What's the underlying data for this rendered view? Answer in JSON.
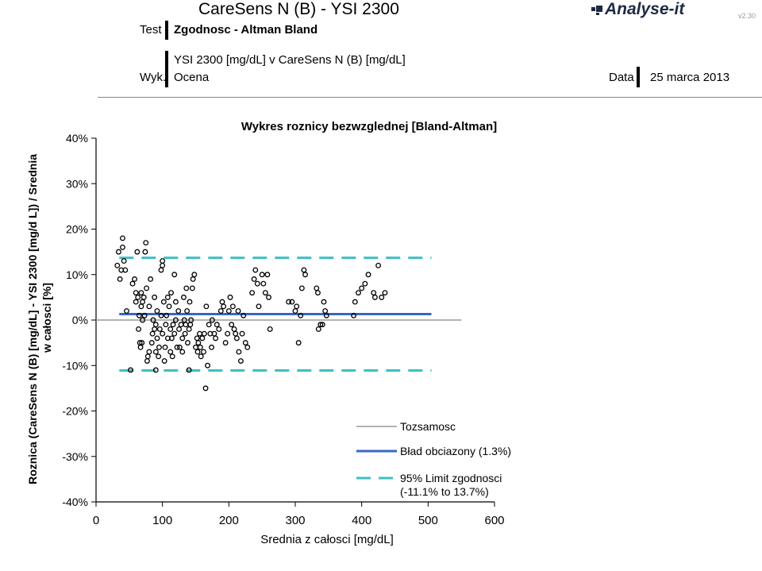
{
  "header": {
    "title": "CareSens N (B)  -  YSI 2300",
    "test_label": "Test",
    "test_value": "Zgodnosc - Altman Bland",
    "subtitle": "YSI 2300 [mg/dL]  v  CareSens N (B) [mg/dL]",
    "wyk_label": "Wyk.",
    "wyk_value": "Ocena",
    "date_label": "Data",
    "date_value": "25 marca 2013",
    "logo": "Analyse-it",
    "version": "v2.30"
  },
  "colors": {
    "bias": "#3a65c8",
    "limits": "#3fbfc0",
    "identity": "#999999",
    "points": "#000000"
  },
  "chart_data": {
    "type": "scatter",
    "title": "Wykres roznicy bezwzglednej [Bland-Altman]",
    "xlabel": "Srednia z całosci [mg/dL]",
    "ylabel": "Roznica  (CareSens N  (B) [mg/dL] - YSI 2300 [mg/d L]) / Srednia w całosci [%]",
    "x_ticks": [
      0,
      100,
      200,
      300,
      400,
      500,
      600
    ],
    "x_tick_labels": [
      "0",
      "100",
      "200",
      "300",
      "400",
      "500",
      "600"
    ],
    "y_ticks": [
      40,
      30,
      20,
      10,
      0,
      -10,
      -20,
      -30,
      -40
    ],
    "y_tick_labels": [
      "40%",
      "30%",
      "20%",
      "10%",
      "0%",
      "-10%",
      "-20%",
      "-30%",
      "-40%"
    ],
    "xlim": [
      0,
      600
    ],
    "ylim": [
      -40,
      40
    ],
    "identity_line": {
      "y": 0,
      "x_range": [
        0,
        550
      ]
    },
    "bias": {
      "y": 1.3,
      "x_range": [
        35,
        505
      ]
    },
    "limits": {
      "lower": -11.1,
      "upper": 13.7,
      "x_range": [
        35,
        505
      ]
    },
    "legend": [
      {
        "label": "Tozsamosc",
        "style": "identity"
      },
      {
        "label": "Bład obciazony (1.3%)",
        "style": "bias"
      },
      {
        "label": "95% Limit zgodnosci",
        "label2": "(-11.1% to 13.7%)",
        "style": "limits"
      }
    ],
    "legend_position": "bottom-right",
    "points": [
      [
        32,
        12
      ],
      [
        34,
        15
      ],
      [
        36,
        9
      ],
      [
        38,
        11
      ],
      [
        40,
        18
      ],
      [
        40,
        16
      ],
      [
        42,
        13
      ],
      [
        44,
        11
      ],
      [
        46,
        2
      ],
      [
        52,
        -11
      ],
      [
        55,
        8
      ],
      [
        58,
        9
      ],
      [
        60,
        6
      ],
      [
        60,
        4
      ],
      [
        62,
        15
      ],
      [
        63,
        5
      ],
      [
        64,
        -2
      ],
      [
        65,
        1
      ],
      [
        66,
        -5
      ],
      [
        67,
        -6
      ],
      [
        68,
        6
      ],
      [
        68,
        3
      ],
      [
        69,
        -5
      ],
      [
        70,
        0
      ],
      [
        70,
        4
      ],
      [
        72,
        5
      ],
      [
        73,
        1
      ],
      [
        74,
        15
      ],
      [
        75,
        17
      ],
      [
        76,
        7
      ],
      [
        77,
        -9
      ],
      [
        78,
        -8
      ],
      [
        80,
        3
      ],
      [
        80,
        -7
      ],
      [
        82,
        9
      ],
      [
        84,
        -5
      ],
      [
        85,
        -3
      ],
      [
        86,
        0
      ],
      [
        88,
        -2
      ],
      [
        88,
        5
      ],
      [
        90,
        -11
      ],
      [
        90,
        -7
      ],
      [
        90,
        -1
      ],
      [
        92,
        2
      ],
      [
        92,
        -4
      ],
      [
        94,
        -8
      ],
      [
        95,
        -6
      ],
      [
        96,
        -2
      ],
      [
        98,
        1
      ],
      [
        98,
        11
      ],
      [
        100,
        12
      ],
      [
        100,
        13
      ],
      [
        100,
        -3
      ],
      [
        102,
        4
      ],
      [
        103,
        -9
      ],
      [
        104,
        -6
      ],
      [
        105,
        -1
      ],
      [
        106,
        1
      ],
      [
        108,
        5
      ],
      [
        108,
        -4
      ],
      [
        110,
        3
      ],
      [
        112,
        -7
      ],
      [
        112,
        -2
      ],
      [
        113,
        6
      ],
      [
        114,
        -4
      ],
      [
        115,
        -8
      ],
      [
        116,
        -1
      ],
      [
        118,
        10
      ],
      [
        118,
        -3
      ],
      [
        120,
        0
      ],
      [
        120,
        4
      ],
      [
        122,
        -6
      ],
      [
        124,
        2
      ],
      [
        125,
        -2
      ],
      [
        126,
        -6
      ],
      [
        128,
        -1
      ],
      [
        130,
        -7
      ],
      [
        130,
        -4
      ],
      [
        132,
        5
      ],
      [
        133,
        0
      ],
      [
        134,
        -3
      ],
      [
        135,
        -1
      ],
      [
        136,
        7
      ],
      [
        137,
        2
      ],
      [
        138,
        -5
      ],
      [
        140,
        -2
      ],
      [
        140,
        -11
      ],
      [
        141,
        4
      ],
      [
        142,
        -1
      ],
      [
        143,
        0
      ],
      [
        145,
        7
      ],
      [
        146,
        9
      ],
      [
        148,
        10
      ],
      [
        150,
        -6
      ],
      [
        152,
        -4
      ],
      [
        153,
        -7
      ],
      [
        154,
        -5
      ],
      [
        156,
        -3
      ],
      [
        157,
        -6
      ],
      [
        158,
        -8
      ],
      [
        160,
        -4
      ],
      [
        162,
        -7
      ],
      [
        163,
        -3
      ],
      [
        165,
        -15
      ],
      [
        166,
        3
      ],
      [
        168,
        -10
      ],
      [
        170,
        -1
      ],
      [
        172,
        -3
      ],
      [
        174,
        -6
      ],
      [
        175,
        0
      ],
      [
        178,
        -3
      ],
      [
        180,
        -4
      ],
      [
        182,
        -1
      ],
      [
        185,
        -2
      ],
      [
        188,
        2
      ],
      [
        190,
        4
      ],
      [
        192,
        3
      ],
      [
        195,
        -5
      ],
      [
        198,
        -3
      ],
      [
        200,
        2
      ],
      [
        202,
        5
      ],
      [
        204,
        -1
      ],
      [
        206,
        3
      ],
      [
        208,
        -2
      ],
      [
        210,
        -3
      ],
      [
        212,
        -4
      ],
      [
        214,
        2
      ],
      [
        215,
        -7
      ],
      [
        218,
        -9
      ],
      [
        220,
        -3
      ],
      [
        222,
        1
      ],
      [
        225,
        -5
      ],
      [
        228,
        -6
      ],
      [
        235,
        6
      ],
      [
        238,
        9
      ],
      [
        240,
        11
      ],
      [
        243,
        8
      ],
      [
        245,
        3
      ],
      [
        250,
        10
      ],
      [
        252,
        8
      ],
      [
        255,
        6
      ],
      [
        258,
        10
      ],
      [
        260,
        5
      ],
      [
        262,
        -2
      ],
      [
        290,
        4
      ],
      [
        295,
        4
      ],
      [
        300,
        2
      ],
      [
        302,
        3
      ],
      [
        305,
        -5
      ],
      [
        308,
        1
      ],
      [
        310,
        7
      ],
      [
        313,
        11
      ],
      [
        315,
        10
      ],
      [
        332,
        7
      ],
      [
        334,
        6
      ],
      [
        335,
        -2
      ],
      [
        338,
        -1
      ],
      [
        341,
        -1
      ],
      [
        343,
        4
      ],
      [
        345,
        2
      ],
      [
        347,
        1
      ],
      [
        388,
        1
      ],
      [
        390,
        4
      ],
      [
        395,
        6
      ],
      [
        400,
        7
      ],
      [
        405,
        8
      ],
      [
        410,
        10
      ],
      [
        418,
        6
      ],
      [
        420,
        5
      ],
      [
        425,
        12
      ],
      [
        430,
        5
      ],
      [
        435,
        6
      ]
    ]
  }
}
